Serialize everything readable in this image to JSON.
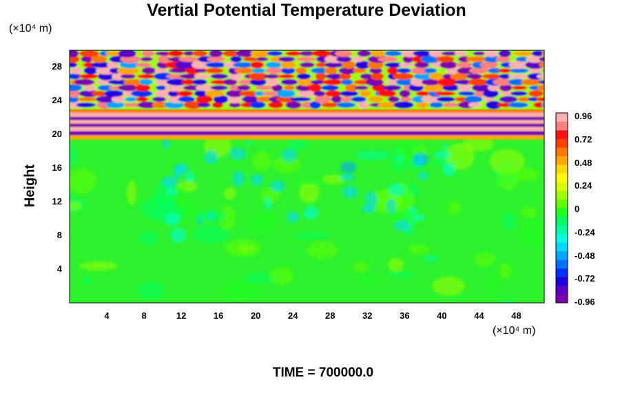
{
  "chart_data": {
    "type": "heatmap",
    "title": "Vertial Potential Temperature Deviation",
    "ylabel": "Height",
    "y_unit": "(×10⁴ m)",
    "x_unit": "(×10⁴ m)",
    "xlim": [
      0,
      51
    ],
    "ylim": [
      0,
      30
    ],
    "x_ticks": [
      "4",
      "8",
      "12",
      "16",
      "20",
      "24",
      "28",
      "32",
      "36",
      "40",
      "44",
      "48"
    ],
    "x_tick_values": [
      4,
      8,
      12,
      16,
      20,
      24,
      28,
      32,
      36,
      40,
      44,
      48
    ],
    "y_ticks": [
      "4",
      "8",
      "12",
      "16",
      "20",
      "24",
      "28"
    ],
    "y_tick_values": [
      4,
      8,
      12,
      16,
      20,
      24,
      28
    ],
    "colorbar": {
      "labels": [
        "0.96",
        "0.72",
        "0.48",
        "0.24",
        "0",
        "-0.24",
        "-0.48",
        "-0.72",
        "-0.96"
      ],
      "range": [
        -0.96,
        0.96
      ],
      "colors": [
        "#7a00b0",
        "#5a00c8",
        "#2000e0",
        "#0030ff",
        "#0070ff",
        "#00a8ff",
        "#00d8ff",
        "#00ffe0",
        "#00ffa0",
        "#00ff60",
        "#20ff20",
        "#60ff00",
        "#a0ff00",
        "#d8ff00",
        "#ffff00",
        "#ffd800",
        "#ffa800",
        "#ff7800",
        "#ff4000",
        "#ff1010",
        "#ff8080",
        "#ffb0b0"
      ]
    },
    "regions": [
      {
        "y_range": [
          0,
          19.5
        ],
        "value": 0,
        "description": "near-zero field"
      },
      {
        "y_range": [
          19.5,
          23
        ],
        "value": "alternating +0.96 / -0.96 bands"
      },
      {
        "y_range": [
          23,
          30
        ],
        "value": "oscillating -0.96 to 0.96 cells"
      }
    ]
  },
  "footer": "TIME = 700000.0"
}
